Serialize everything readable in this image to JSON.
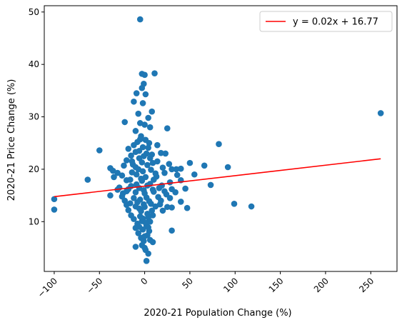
{
  "chart_data": {
    "type": "scatter",
    "xlabel": "2020-21 Population Change (%)",
    "ylabel": "2020-21 Price Change (%)",
    "xlim": [
      -111,
      279
    ],
    "ylim": [
      0.5,
      51.2
    ],
    "xticks": [
      -100,
      -50,
      0,
      50,
      100,
      150,
      200,
      250
    ],
    "xtick_labels": [
      "−100",
      "−50",
      "0",
      "50",
      "100",
      "150",
      "200",
      "250"
    ],
    "yticks": [
      10,
      20,
      30,
      40,
      50
    ],
    "ytick_labels": [
      "10",
      "20",
      "30",
      "40",
      "50"
    ],
    "grid": false,
    "legend_position": "top-right",
    "point_color": "#1f77b4",
    "fit_color": "#ff0000",
    "points": [
      [
        -5,
        48.6
      ],
      [
        -3,
        38.2
      ],
      [
        0,
        38.0
      ],
      [
        11,
        38.3
      ],
      [
        -1,
        36.3
      ],
      [
        -3,
        35.5
      ],
      [
        -9,
        34.5
      ],
      [
        1,
        34.3
      ],
      [
        -2,
        32.6
      ],
      [
        -12,
        32.9
      ],
      [
        8,
        31.0
      ],
      [
        -7,
        30.6
      ],
      [
        4,
        29.8
      ],
      [
        -22,
        29.0
      ],
      [
        0,
        28.5
      ],
      [
        6,
        28.0
      ],
      [
        -5,
        28.8
      ],
      [
        25,
        27.8
      ],
      [
        -10,
        27.3
      ],
      [
        -4,
        26.3
      ],
      [
        -8,
        25.2
      ],
      [
        -5,
        25.7
      ],
      [
        1,
        25.6
      ],
      [
        5,
        25.0
      ],
      [
        14,
        24.6
      ],
      [
        -12,
        24.6
      ],
      [
        -18,
        23.9
      ],
      [
        -50,
        23.6
      ],
      [
        18,
        23.1
      ],
      [
        -10,
        23.3
      ],
      [
        -15,
        22.6
      ],
      [
        -6,
        22.1
      ],
      [
        6,
        22.1
      ],
      [
        23,
        23.0
      ],
      [
        -20,
        21.7
      ],
      [
        -3,
        21.3
      ],
      [
        -13,
        20.9
      ],
      [
        -23,
        20.7
      ],
      [
        9,
        21.2
      ],
      [
        30,
        20.0
      ],
      [
        -38,
        20.2
      ],
      [
        -35,
        19.7
      ],
      [
        -30,
        19.3
      ],
      [
        -34,
        18.5
      ],
      [
        35,
        20.0
      ],
      [
        40,
        20.1
      ],
      [
        -10,
        20.4
      ],
      [
        50,
        21.2
      ],
      [
        66,
        20.7
      ],
      [
        82,
        24.8
      ],
      [
        92,
        20.4
      ],
      [
        -25,
        18.8
      ],
      [
        -9,
        19.0
      ],
      [
        -2,
        19.6
      ],
      [
        12,
        19.2
      ],
      [
        22,
        19.3
      ],
      [
        36,
        18.9
      ],
      [
        55,
        19.0
      ],
      [
        -63,
        18.0
      ],
      [
        -20,
        17.9
      ],
      [
        -3,
        17.8
      ],
      [
        10,
        18.0
      ],
      [
        28,
        17.5
      ],
      [
        40,
        17.9
      ],
      [
        73,
        17.0
      ],
      [
        -28,
        16.5
      ],
      [
        -15,
        16.8
      ],
      [
        -6,
        16.4
      ],
      [
        3,
        16.9
      ],
      [
        16,
        16.4
      ],
      [
        30,
        16.2
      ],
      [
        45,
        16.3
      ],
      [
        -30,
        16.1
      ],
      [
        -20,
        15.8
      ],
      [
        -10,
        15.6
      ],
      [
        0,
        15.4
      ],
      [
        10,
        15.7
      ],
      [
        22,
        15.8
      ],
      [
        34,
        15.6
      ],
      [
        -38,
        15.0
      ],
      [
        -25,
        14.8
      ],
      [
        -12,
        14.5
      ],
      [
        2,
        14.6
      ],
      [
        15,
        14.7
      ],
      [
        28,
        14.5
      ],
      [
        -100,
        14.3
      ],
      [
        -22,
        14.0
      ],
      [
        -8,
        13.7
      ],
      [
        5,
        13.9
      ],
      [
        18,
        14.0
      ],
      [
        40,
        13.8
      ],
      [
        -20,
        13.2
      ],
      [
        -10,
        12.9
      ],
      [
        0,
        12.8
      ],
      [
        12,
        12.9
      ],
      [
        25,
        12.8
      ],
      [
        30,
        12.7
      ],
      [
        47,
        12.6
      ],
      [
        99,
        13.4
      ],
      [
        118,
        12.9
      ],
      [
        -100,
        12.3
      ],
      [
        -18,
        12.2
      ],
      [
        -4,
        12.0
      ],
      [
        8,
        12.1
      ],
      [
        20,
        12.1
      ],
      [
        -15,
        11.2
      ],
      [
        -5,
        11.0
      ],
      [
        4,
        10.8
      ],
      [
        -12,
        10.5
      ],
      [
        -3,
        10.1
      ],
      [
        6,
        10.0
      ],
      [
        -8,
        9.6
      ],
      [
        2,
        9.3
      ],
      [
        -10,
        8.8
      ],
      [
        -2,
        8.5
      ],
      [
        5,
        8.2
      ],
      [
        30,
        8.3
      ],
      [
        -7,
        7.8
      ],
      [
        3,
        7.4
      ],
      [
        -4,
        6.9
      ],
      [
        6,
        6.5
      ],
      [
        9,
        6.1
      ],
      [
        -3,
        5.5
      ],
      [
        0,
        5.0
      ],
      [
        -10,
        5.2
      ],
      [
        1,
        4.6
      ],
      [
        4,
        3.9
      ],
      [
        2,
        2.5
      ],
      [
        261,
        30.7
      ],
      [
        -14,
        21.5
      ],
      [
        -6,
        23.5
      ],
      [
        2,
        23.0
      ],
      [
        8,
        22.8
      ],
      [
        -2,
        24.2
      ],
      [
        4,
        24.1
      ],
      [
        -7,
        20.0
      ],
      [
        3,
        20.8
      ],
      [
        7,
        19.9
      ],
      [
        -4,
        18.2
      ],
      [
        1,
        18.5
      ],
      [
        6,
        17.2
      ],
      [
        -9,
        17.1
      ],
      [
        -1,
        16.0
      ],
      [
        9,
        16.1
      ],
      [
        -16,
        18.0
      ],
      [
        14,
        21.5
      ],
      [
        -1,
        22.5
      ],
      [
        -5,
        14.2
      ],
      [
        -1,
        13.3
      ],
      [
        7,
        13.4
      ],
      [
        -6,
        12.5
      ],
      [
        3,
        11.5
      ],
      [
        9,
        11.2
      ],
      [
        -2,
        10.6
      ],
      [
        1,
        9.8
      ],
      [
        -6,
        9.0
      ],
      [
        4,
        8.9
      ],
      [
        0,
        7.2
      ],
      [
        -1,
        6.3
      ],
      [
        -14,
        19.4
      ],
      [
        13,
        18.6
      ],
      [
        19,
        16.9
      ],
      [
        -18,
        16.2
      ],
      [
        24,
        15.2
      ],
      [
        -24,
        15.4
      ],
      [
        17,
        13.3
      ],
      [
        -16,
        13.5
      ],
      [
        20,
        20.3
      ],
      [
        27,
        21.0
      ]
    ],
    "fit": {
      "slope": 0.02,
      "intercept": 16.77,
      "x_range": [
        -100,
        261
      ],
      "legend_label": "y = 0.02x + 16.77"
    }
  }
}
